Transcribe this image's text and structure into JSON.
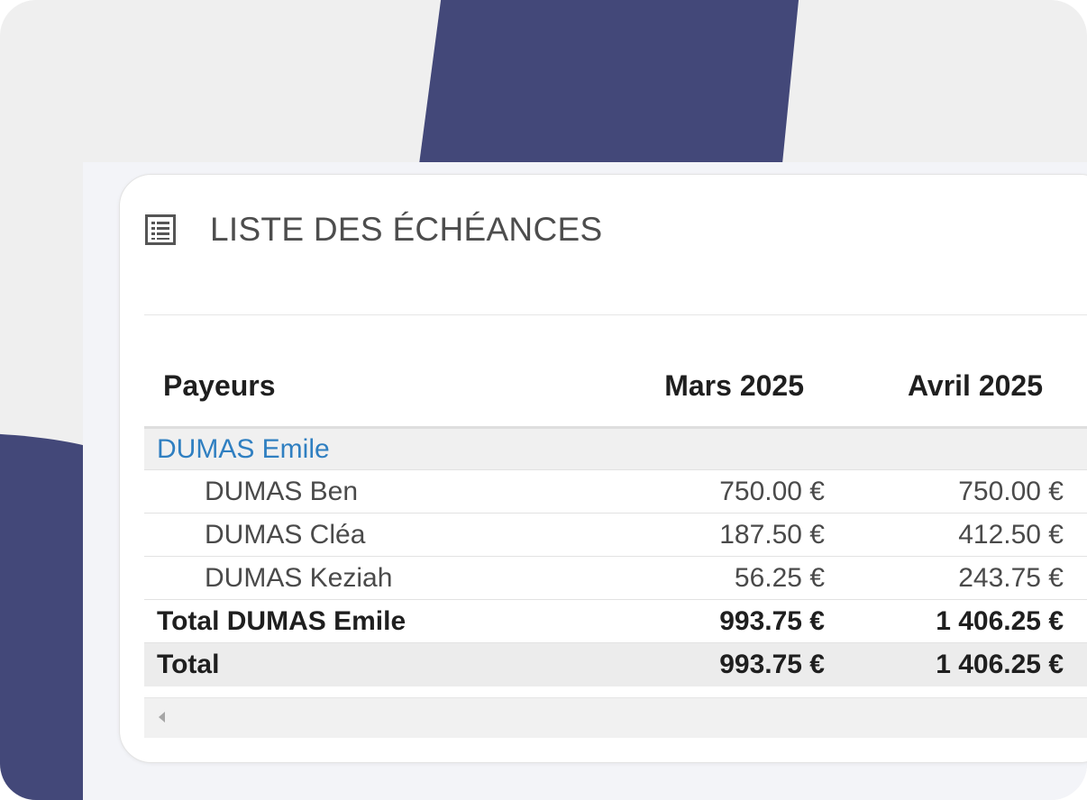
{
  "card": {
    "title": "LISTE DES ÉCHÉANCES",
    "icon": "list-icon"
  },
  "table": {
    "headers": {
      "payer": "Payeurs",
      "col1": "Mars 2025",
      "col2": "Avril 2025"
    },
    "group": {
      "name": "DUMAS Emile",
      "items": [
        {
          "name": "DUMAS Ben",
          "col1": "750.00 €",
          "col2": "750.00 €"
        },
        {
          "name": "DUMAS Cléa",
          "col1": "187.50 €",
          "col2": "412.50 €"
        },
        {
          "name": "DUMAS Keziah",
          "col1": "56.25 €",
          "col2": "243.75 €"
        }
      ],
      "subtotal": {
        "label": "Total DUMAS Emile",
        "col1": "993.75 €",
        "col2": "1 406.25 €"
      }
    },
    "total": {
      "label": "Total",
      "col1": "993.75 €",
      "col2": "1 406.25 €"
    }
  },
  "colors": {
    "accent": "#434879",
    "link": "#2f7fc1"
  }
}
